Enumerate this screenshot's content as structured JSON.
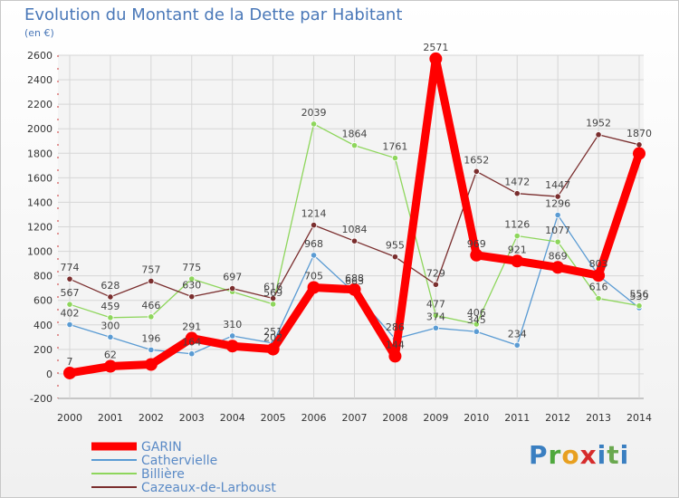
{
  "header": {
    "title": "Evolution du Montant de la Dette par Habitant",
    "subtitle": "(en €)"
  },
  "brand": {
    "logo_text": "Proxiti"
  },
  "chart_data": {
    "type": "line",
    "title": "Evolution du Montant de la Dette par Habitant",
    "subtitle": "(en €)",
    "xlabel": "",
    "ylabel": "",
    "x": [
      "2000",
      "2001",
      "2002",
      "2003",
      "2004",
      "2005",
      "2006",
      "2007",
      "2008",
      "2009",
      "2010",
      "2011",
      "2012",
      "2013",
      "2014"
    ],
    "ylim": [
      -200,
      2600
    ],
    "yticks": [
      -200,
      0,
      200,
      400,
      600,
      800,
      1000,
      1200,
      1400,
      1600,
      1800,
      2000,
      2200,
      2400,
      2600
    ],
    "grid": true,
    "legend": "bottom-left",
    "series": [
      {
        "name": "GARIN",
        "color": "#ff0000",
        "values": [
          7,
          62,
          77,
          291,
          227,
          202,
          705,
          688,
          144,
          2571,
          969,
          921,
          869,
          803,
          1798
        ],
        "labels": [
          "7",
          "62",
          "",
          "291",
          "",
          "202",
          "705",
          "688",
          "144",
          "2571",
          "969",
          "921",
          "869",
          "",
          ""
        ]
      },
      {
        "name": "Cathervielle",
        "color": "#5a9bd3",
        "values": [
          402,
          300,
          196,
          164,
          310,
          251,
          968,
          663,
          286,
          374,
          345,
          234,
          1296,
          803,
          539
        ],
        "labels": [
          "402",
          "300",
          "196",
          "164",
          "310",
          "251",
          "968",
          "663",
          "286",
          "374",
          "345",
          "234",
          "1296",
          "803",
          "539"
        ]
      },
      {
        "name": "Billière",
        "color": "#8ed65c",
        "values": [
          567,
          459,
          466,
          775,
          670,
          569,
          2039,
          1864,
          1761,
          477,
          406,
          1126,
          1077,
          616,
          556
        ],
        "labels": [
          "567",
          "459",
          "466",
          "775",
          "",
          "569",
          "2039",
          "1864",
          "1761",
          "477",
          "406",
          "1126",
          "1077",
          "616",
          "556"
        ]
      },
      {
        "name": "Cazeaux-de-Larboust",
        "color": "#7a2e2e",
        "values": [
          774,
          628,
          757,
          630,
          697,
          616,
          1214,
          1084,
          955,
          729,
          1652,
          1472,
          1447,
          1952,
          1870
        ],
        "labels": [
          "774",
          "628",
          "757",
          "630",
          "697",
          "616",
          "1214",
          "1084",
          "955",
          "729",
          "1652",
          "1472",
          "1447",
          "1952",
          "1870"
        ]
      }
    ]
  }
}
